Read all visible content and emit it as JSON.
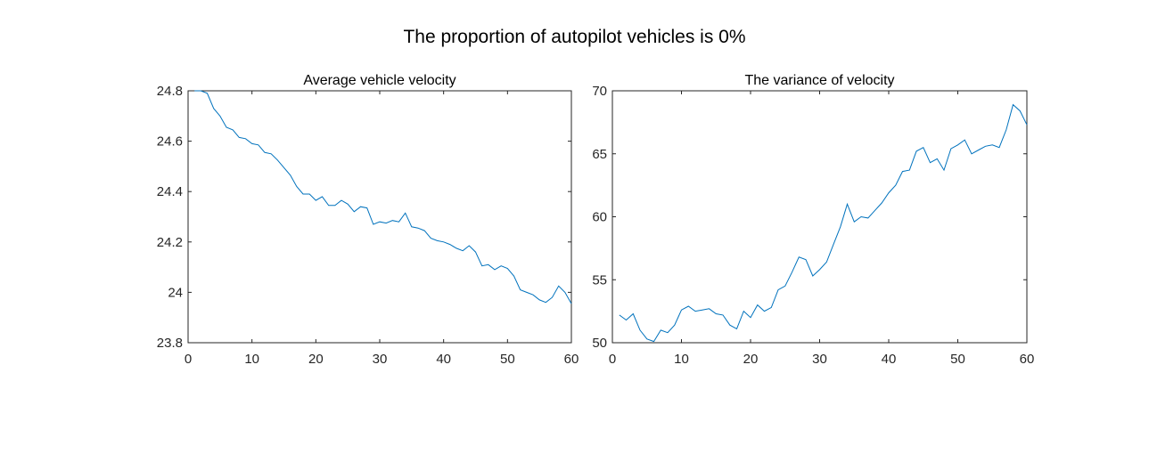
{
  "figure": {
    "title": "The proportion of autopilot vehicles is 0%"
  },
  "chart_data": [
    {
      "type": "line",
      "title": "Average vehicle velocity",
      "xlabel": "",
      "ylabel": "",
      "xlim": [
        0,
        60
      ],
      "ylim": [
        23.8,
        24.8
      ],
      "xticks": [
        0,
        10,
        20,
        30,
        40,
        50,
        60
      ],
      "yticks": [
        23.8,
        24,
        24.2,
        24.4,
        24.6,
        24.8
      ],
      "xtick_labels": [
        "0",
        "10",
        "20",
        "30",
        "40",
        "50",
        "60"
      ],
      "ytick_labels": [
        "23.8",
        "24",
        "24.2",
        "24.4",
        "24.6",
        "24.8"
      ],
      "grid": false,
      "color": "#0072BD",
      "series": [
        {
          "x": [
            1,
            2,
            3,
            4,
            5,
            6,
            7,
            8,
            9,
            10,
            11,
            12,
            13,
            14,
            15,
            16,
            17,
            18,
            19,
            20,
            21,
            22,
            23,
            24,
            25,
            26,
            27,
            28,
            29,
            30,
            31,
            32,
            33,
            34,
            35,
            36,
            37,
            38,
            39,
            40,
            41,
            42,
            43,
            44,
            45,
            46,
            47,
            48,
            49,
            50,
            51,
            52,
            53,
            54,
            55,
            56,
            57,
            58,
            59,
            60
          ],
          "y": [
            24.8,
            24.8,
            24.79,
            24.73,
            24.7,
            24.655,
            24.645,
            24.615,
            24.61,
            24.59,
            24.585,
            24.555,
            24.55,
            24.525,
            24.495,
            24.465,
            24.42,
            24.39,
            24.39,
            24.365,
            24.38,
            24.345,
            24.345,
            24.365,
            24.35,
            24.32,
            24.34,
            24.335,
            24.27,
            24.28,
            24.275,
            24.285,
            24.28,
            24.315,
            24.26,
            24.255,
            24.245,
            24.215,
            24.205,
            24.2,
            24.19,
            24.175,
            24.165,
            24.185,
            24.16,
            24.105,
            24.11,
            24.09,
            24.105,
            24.095,
            24.065,
            24.01,
            24.0,
            23.99,
            23.97,
            23.96,
            23.98,
            24.025,
            24.0,
            23.955
          ]
        }
      ]
    },
    {
      "type": "line",
      "title": "The variance of velocity",
      "xlabel": "",
      "ylabel": "",
      "xlim": [
        0,
        60
      ],
      "ylim": [
        50,
        70
      ],
      "xticks": [
        0,
        10,
        20,
        30,
        40,
        50,
        60
      ],
      "yticks": [
        50,
        55,
        60,
        65,
        70
      ],
      "xtick_labels": [
        "0",
        "10",
        "20",
        "30",
        "40",
        "50",
        "60"
      ],
      "ytick_labels": [
        "50",
        "55",
        "60",
        "65",
        "70"
      ],
      "grid": false,
      "color": "#0072BD",
      "series": [
        {
          "x": [
            1,
            2,
            3,
            4,
            5,
            6,
            7,
            8,
            9,
            10,
            11,
            12,
            13,
            14,
            15,
            16,
            17,
            18,
            19,
            20,
            21,
            22,
            23,
            24,
            25,
            26,
            27,
            28,
            29,
            30,
            31,
            32,
            33,
            34,
            35,
            36,
            37,
            38,
            39,
            40,
            41,
            42,
            43,
            44,
            45,
            46,
            47,
            48,
            49,
            50,
            51,
            52,
            53,
            54,
            55,
            56,
            57,
            58,
            59,
            60
          ],
          "y": [
            52.2,
            51.8,
            52.3,
            51.0,
            50.3,
            50.1,
            51.0,
            50.8,
            51.4,
            52.6,
            52.9,
            52.5,
            52.6,
            52.7,
            52.3,
            52.2,
            51.4,
            51.1,
            52.5,
            52.0,
            53.0,
            52.5,
            52.8,
            54.2,
            54.5,
            55.6,
            56.8,
            56.6,
            55.3,
            55.8,
            56.4,
            57.8,
            59.2,
            61.0,
            59.6,
            60.0,
            59.9,
            60.5,
            61.1,
            61.9,
            62.5,
            63.6,
            63.7,
            65.2,
            65.5,
            64.3,
            64.6,
            63.7,
            65.4,
            65.7,
            66.1,
            65.0,
            65.3,
            65.6,
            65.7,
            65.5,
            66.9,
            68.9,
            68.4,
            67.3
          ]
        }
      ]
    }
  ]
}
